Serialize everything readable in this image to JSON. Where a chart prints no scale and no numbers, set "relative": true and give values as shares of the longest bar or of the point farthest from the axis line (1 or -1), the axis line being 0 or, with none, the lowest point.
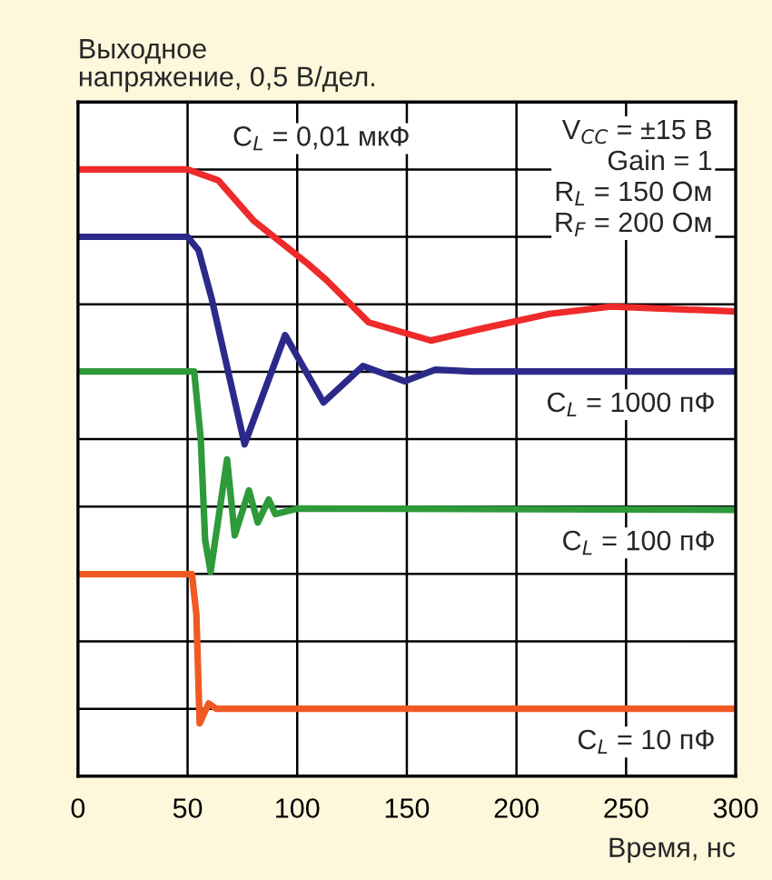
{
  "chart_data": {
    "type": "line",
    "relative": true,
    "ylabel": "Выходное\nнапряжение, 0,5 В/дел.",
    "xlabel": "Время, нс",
    "xlim": [
      0,
      300
    ],
    "xticks": [
      0,
      50,
      100,
      150,
      200,
      250,
      300
    ],
    "grid": true,
    "line_style": "solid",
    "marker": "none",
    "annotations": [
      "V$_{CC}$ = ±15 В\nGain = 1\nR$_{L}$ = 150 Ом\nR$_{F}$ = 200 Ом"
    ],
    "series": [
      {
        "name": "C$_{L}$ = 0,01 мкФ",
        "color": "#ee2a2a",
        "x": [
          0,
          50,
          64,
          80,
          105,
          113.5,
          132.6,
          161,
          182,
          215,
          243,
          300
        ],
        "values": [
          1.0,
          1.0,
          0.982,
          0.916,
          0.844,
          0.817,
          0.748,
          0.718,
          0.736,
          0.762,
          0.774,
          0.766
        ]
      },
      {
        "name": "C$_{L}$ = 1000 пФ",
        "color": "#2b2a8a",
        "x": [
          0,
          50,
          55,
          61,
          76,
          94.5,
          112,
          130,
          149,
          163,
          180,
          300
        ],
        "values": [
          0.889,
          0.889,
          0.867,
          0.787,
          0.547,
          0.727,
          0.616,
          0.676,
          0.651,
          0.67,
          0.667,
          0.667
        ]
      },
      {
        "name": "C$_{L}$ = 100 пФ",
        "color": "#2e9a3a",
        "x": [
          0,
          53,
          56,
          58,
          60.5,
          68,
          71.5,
          78,
          82,
          87,
          90,
          100,
          300
        ],
        "values": [
          0.667,
          0.667,
          0.556,
          0.389,
          0.337,
          0.522,
          0.397,
          0.471,
          0.418,
          0.456,
          0.432,
          0.441,
          0.439
        ]
      },
      {
        "name": "C$_{L}$ = 10 пФ",
        "color": "#f05a22",
        "x": [
          0,
          52,
          54,
          55.5,
          59.6,
          63,
          300
        ],
        "values": [
          0.333,
          0.333,
          0.267,
          0.087,
          0.12,
          0.111,
          0.111
        ]
      }
    ]
  }
}
